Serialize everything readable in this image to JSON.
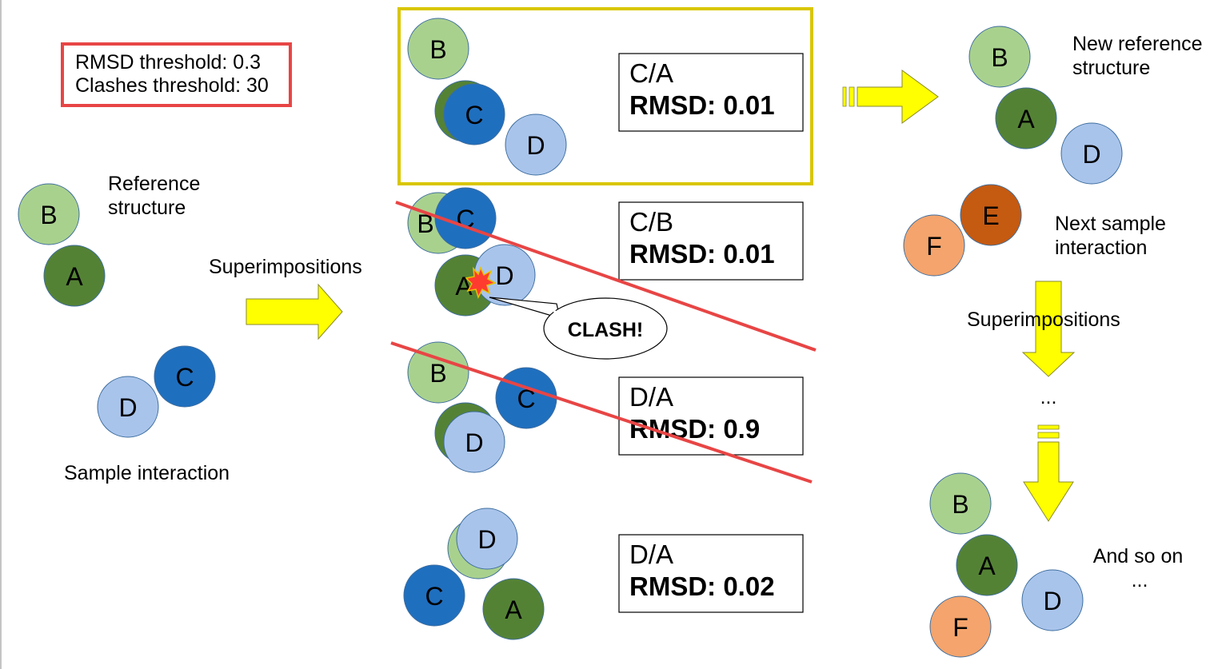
{
  "colors": {
    "light_green": "#a9d18e",
    "dark_green": "#548235",
    "dark_blue": "#1f6fbf",
    "light_blue": "#a9c4eb",
    "orange_light": "#f4a46c",
    "orange_dark": "#c55a11",
    "arrow_yellow": "#ffff00",
    "threshold_red": "#e84545",
    "highlight_gold": "#d9c600"
  },
  "thresholds": {
    "line1": "RMSD threshold: 0.3",
    "line2": "Clashes threshold: 30"
  },
  "reference": {
    "label_line1": "Reference",
    "label_line2": "structure",
    "circles": [
      "B",
      "A"
    ]
  },
  "sample": {
    "label": "Sample interaction",
    "circles": [
      "D",
      "C"
    ]
  },
  "superimpositions_label": "Superimpositions",
  "results": [
    {
      "pair": "C/A",
      "rmsd": "RMSD: 0.01",
      "circles": [
        "B",
        "C",
        "D"
      ]
    },
    {
      "pair": "C/B",
      "rmsd": "RMSD: 0.01",
      "circles": [
        "B",
        "C",
        "A",
        "D"
      ]
    },
    {
      "pair": "D/A",
      "rmsd": "RMSD: 0.9",
      "circles": [
        "B",
        "C",
        "D"
      ]
    },
    {
      "pair": "D/A",
      "rmsd": "RMSD: 0.02",
      "circles": [
        "D",
        "C",
        "A"
      ]
    }
  ],
  "clash_label": "CLASH!",
  "new_reference": {
    "label_line1": "New reference",
    "label_line2": "structure",
    "circles": [
      "B",
      "A",
      "D"
    ]
  },
  "next_sample": {
    "label_line1": "Next sample",
    "label_line2": "interaction",
    "circles": [
      "F",
      "E"
    ]
  },
  "right_superimpositions_label": "Superimpositions",
  "ellipsis": "...",
  "final": {
    "label_line1": "And so on",
    "label_line2": "...",
    "circles": [
      "B",
      "A",
      "D",
      "F"
    ]
  }
}
